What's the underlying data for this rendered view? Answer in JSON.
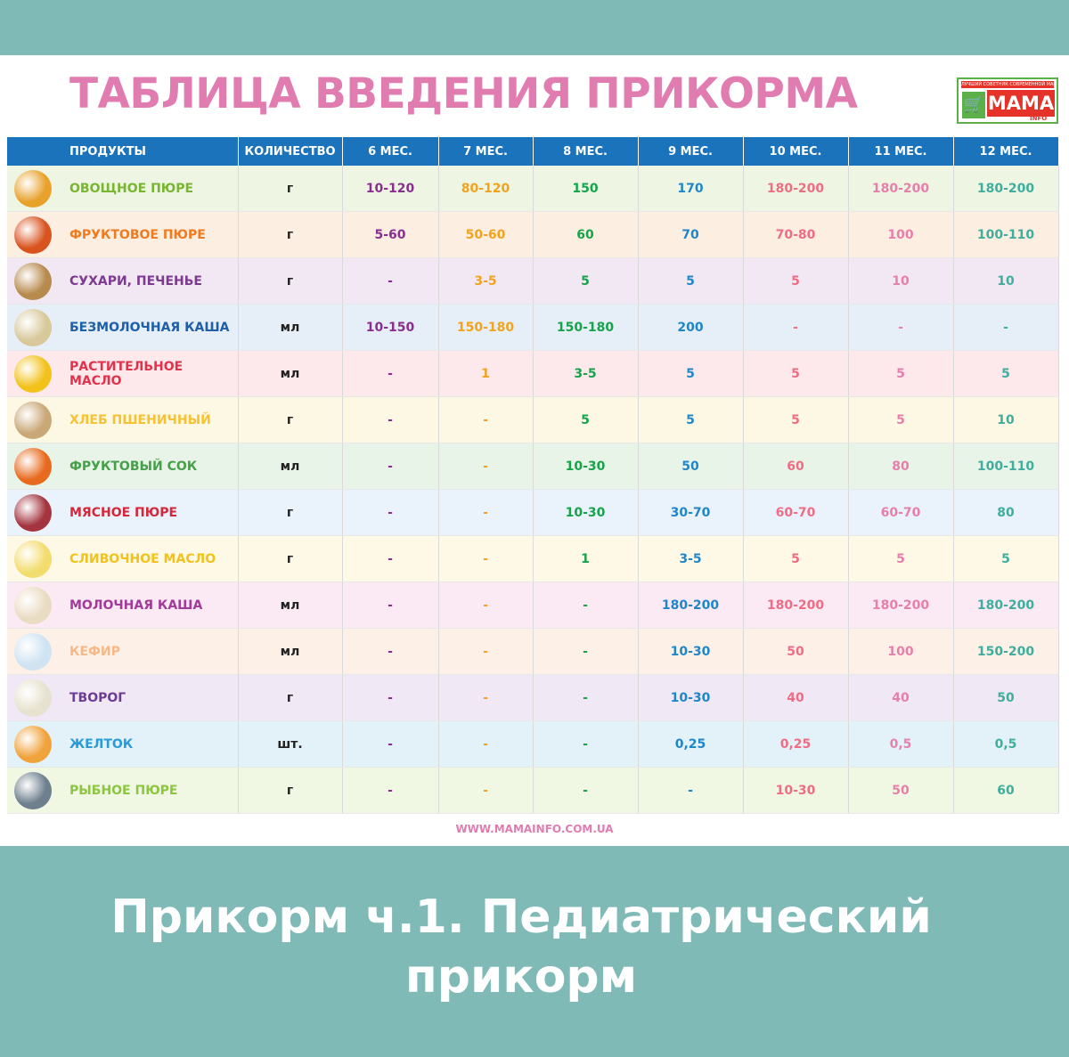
{
  "title": "ТАБЛИЦА ВВЕДЕНИЯ ПРИКОРМА",
  "logo": {
    "tagline": "ЛУЧШИЙ СОВЕТНИК СОВРЕМЕННОЙ МАМЫ",
    "brand": "МАМА",
    "sub": "INFO"
  },
  "headers": [
    "ПРОДУКТЫ",
    "КОЛИЧЕСТВО",
    "6 МЕС.",
    "7 МЕС.",
    "8 МЕС.",
    "9 МЕС.",
    "10 МЕС.",
    "11 МЕС.",
    "12 МЕС."
  ],
  "column_colors": [
    "#8a2f8f",
    "#f2a21d",
    "#16a34a",
    "#1f86c9",
    "#ee6d85",
    "#e77fab",
    "#3fae9d"
  ],
  "rows": [
    {
      "name": "ОВОЩНОЕ ПЮРЕ",
      "unit": "г",
      "values": [
        "10-120",
        "80-120",
        "150",
        "170",
        "180-200",
        "180-200",
        "180-200"
      ],
      "name_color": "#79b531",
      "bg": "#eef6e3",
      "thumb": "#e8a22c"
    },
    {
      "name": "ФРУКТОВОЕ ПЮРЕ",
      "unit": "г",
      "values": [
        "5-60",
        "50-60",
        "60",
        "70",
        "70-80",
        "100",
        "100-110"
      ],
      "name_color": "#ef7b21",
      "bg": "#fdeee2",
      "thumb": "#d9531f"
    },
    {
      "name": "СУХАРИ, ПЕЧЕНЬЕ",
      "unit": "г",
      "values": [
        "-",
        "3-5",
        "5",
        "5",
        "5",
        "10",
        "10"
      ],
      "name_color": "#7d3a8f",
      "bg": "#f1e8f4",
      "thumb": "#b78a4d"
    },
    {
      "name": "БЕЗМОЛОЧНАЯ КАША",
      "unit": "мл",
      "values": [
        "10-150",
        "150-180",
        "150-180",
        "200",
        "-",
        "-",
        "-"
      ],
      "name_color": "#1e5fa8",
      "bg": "#e6eef7",
      "thumb": "#d8c89a"
    },
    {
      "name": "РАСТИТЕЛЬНОЕ МАСЛО",
      "unit": "мл",
      "values": [
        "-",
        "1",
        "3-5",
        "5",
        "5",
        "5",
        "5"
      ],
      "name_color": "#e0334b",
      "bg": "#fde8ec",
      "thumb": "#f2c21b"
    },
    {
      "name": "ХЛЕБ ПШЕНИЧНЫЙ",
      "unit": "г",
      "values": [
        "-",
        "-",
        "5",
        "5",
        "5",
        "5",
        "10"
      ],
      "name_color": "#f6c233",
      "bg": "#fdf8e3",
      "thumb": "#c9a776"
    },
    {
      "name": "ФРУКТОВЫЙ СОК",
      "unit": "мл",
      "values": [
        "-",
        "-",
        "10-30",
        "50",
        "60",
        "80",
        "100-110"
      ],
      "name_color": "#46a04a",
      "bg": "#e8f4e8",
      "thumb": "#e86a1e"
    },
    {
      "name": "МЯСНОЕ ПЮРЕ",
      "unit": "г",
      "values": [
        "-",
        "-",
        "10-30",
        "30-70",
        "60-70",
        "60-70",
        "80"
      ],
      "name_color": "#d6263a",
      "bg": "#eaf3fb",
      "thumb": "#a4343f"
    },
    {
      "name": "СЛИВОЧНОЕ МАСЛО",
      "unit": "г",
      "values": [
        "-",
        "-",
        "1",
        "3-5",
        "5",
        "5",
        "5"
      ],
      "name_color": "#f2c21b",
      "bg": "#fdf9e6",
      "thumb": "#f3dc6e"
    },
    {
      "name": "МОЛОЧНАЯ КАША",
      "unit": "мл",
      "values": [
        "-",
        "-",
        "-",
        "180-200",
        "180-200",
        "180-200",
        "180-200"
      ],
      "name_color": "#a13a98",
      "bg": "#fbeaf4",
      "thumb": "#eadcc3"
    },
    {
      "name": "КЕФИР",
      "unit": "мл",
      "values": [
        "-",
        "-",
        "-",
        "10-30",
        "50",
        "100",
        "150-200"
      ],
      "name_color": "#f6b887",
      "bg": "#fdf1e7",
      "thumb": "#cfe3f2"
    },
    {
      "name": "ТВОРОГ",
      "unit": "г",
      "values": [
        "-",
        "-",
        "-",
        "10-30",
        "40",
        "40",
        "50"
      ],
      "name_color": "#6d3c95",
      "bg": "#f0e9f5",
      "thumb": "#e7e2cf"
    },
    {
      "name": "ЖЕЛТОК",
      "unit": "шт.",
      "values": [
        "-",
        "-",
        "-",
        "0,25",
        "0,25",
        "0,5",
        "0,5"
      ],
      "name_color": "#2a9bd6",
      "bg": "#e3f1f9",
      "thumb": "#f0a23b"
    },
    {
      "name": "РЫБНОЕ ПЮРЕ",
      "unit": "г",
      "values": [
        "-",
        "-",
        "-",
        "-",
        "10-30",
        "50",
        "60"
      ],
      "name_color": "#8cc63f",
      "bg": "#f0f7e3",
      "thumb": "#6e7f8d"
    }
  ],
  "footer_url": "WWW.MAMAINFO.COM.UA",
  "caption_line1": "Прикорм ч.1. Педиатрический",
  "caption_line2": "прикорм"
}
